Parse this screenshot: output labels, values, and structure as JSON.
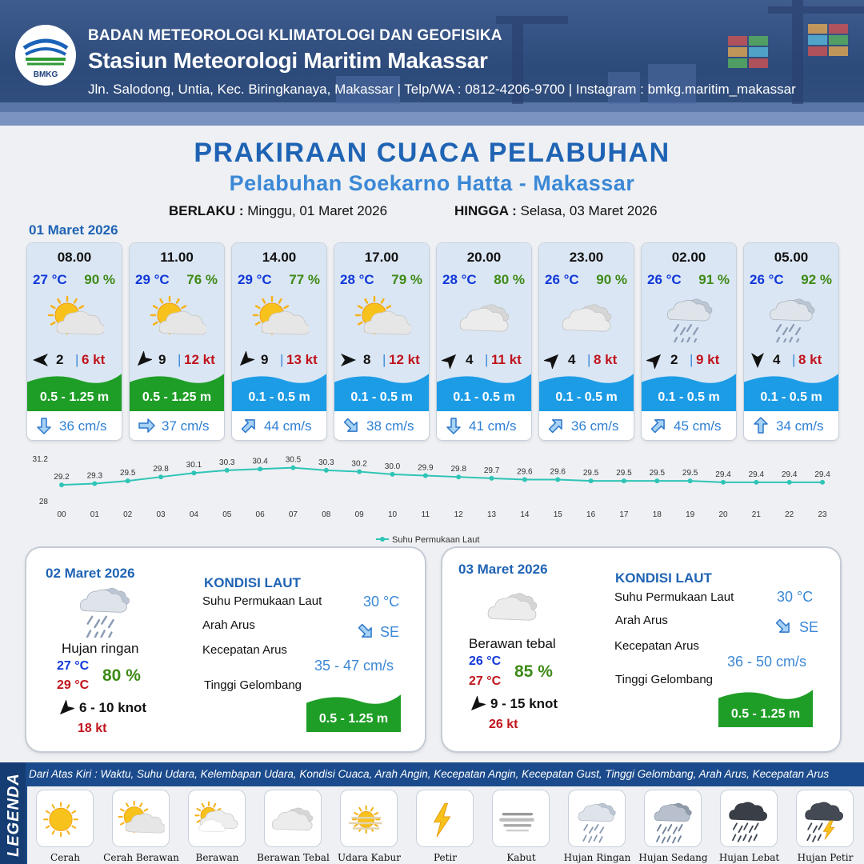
{
  "header": {
    "org": "BADAN METEOROLOGI KLIMATOLOGI DAN GEOFISIKA",
    "station": "Stasiun Meteorologi Maritim Makassar",
    "address": "Jln. Salodong, Untia, Kec. Biringkanaya, Makassar | Telp/WA : 0812-4206-9700 | Instagram : bmkg.maritim_makassar",
    "logo_text": "BMKG"
  },
  "title": "PRAKIRAAN CUACA PELABUHAN",
  "subtitle": "Pelabuhan Soekarno Hatta - Makassar",
  "validity": {
    "from_label": "BERLAKU :",
    "from_value": "Minggu, 01 Maret 2026",
    "to_label": "HINGGA :",
    "to_value": "Selasa, 03 Maret 2026"
  },
  "day1": {
    "date": "01 Maret 2026",
    "hours": [
      {
        "time": "08.00",
        "temp": "27 °C",
        "hum": "90 %",
        "icon": "cerah-berawan-icon",
        "wind_dir": "E",
        "wind": "2",
        "gust": "6 kt",
        "wave": "0.5 - 1.25 m",
        "wave_color": "#1f9e27",
        "cur_dir": "S",
        "current": "36 cm/s"
      },
      {
        "time": "11.00",
        "temp": "29 °C",
        "hum": "76 %",
        "icon": "cerah-berawan-icon",
        "wind_dir": "NE",
        "wind": "9",
        "gust": "12 kt",
        "wave": "0.5 - 1.25 m",
        "wave_color": "#1f9e27",
        "cur_dir": "E",
        "current": "37 cm/s"
      },
      {
        "time": "14.00",
        "temp": "29 °C",
        "hum": "77 %",
        "icon": "cerah-berawan-icon",
        "wind_dir": "NE",
        "wind": "9",
        "gust": "13 kt",
        "wave": "0.1 - 0.5 m",
        "wave_color": "#1d9ce6",
        "cur_dir": "NE",
        "current": "44 cm/s"
      },
      {
        "time": "17.00",
        "temp": "28 °C",
        "hum": "79 %",
        "icon": "cerah-berawan-icon",
        "wind_dir": "W",
        "wind": "8",
        "gust": "12 kt",
        "wave": "0.1 - 0.5 m",
        "wave_color": "#1d9ce6",
        "cur_dir": "SE",
        "current": "38 cm/s"
      },
      {
        "time": "20.00",
        "temp": "28 °C",
        "hum": "80 %",
        "icon": "berawan-tebal-icon",
        "wind_dir": "SW",
        "wind": "4",
        "gust": "11 kt",
        "wave": "0.1 - 0.5 m",
        "wave_color": "#1d9ce6",
        "cur_dir": "S",
        "current": "41 cm/s"
      },
      {
        "time": "23.00",
        "temp": "26 °C",
        "hum": "90 %",
        "icon": "berawan-tebal-icon",
        "wind_dir": "SW",
        "wind": "4",
        "gust": "8 kt",
        "wave": "0.1 - 0.5 m",
        "wave_color": "#1d9ce6",
        "cur_dir": "NE",
        "current": "36 cm/s"
      },
      {
        "time": "02.00",
        "temp": "26 °C",
        "hum": "91 %",
        "icon": "hujan-ringan-icon",
        "wind_dir": "SW",
        "wind": "2",
        "gust": "9 kt",
        "wave": "0.1 - 0.5 m",
        "wave_color": "#1d9ce6",
        "cur_dir": "NE",
        "current": "45 cm/s"
      },
      {
        "time": "05.00",
        "temp": "26 °C",
        "hum": "92 %",
        "icon": "hujan-ringan-icon",
        "wind_dir": "N",
        "wind": "4",
        "gust": "8 kt",
        "wave": "0.1 - 0.5 m",
        "wave_color": "#1d9ce6",
        "cur_dir": "N",
        "current": "34 cm/s"
      }
    ]
  },
  "chart_data": {
    "type": "line",
    "x": [
      "00",
      "01",
      "02",
      "03",
      "04",
      "05",
      "06",
      "07",
      "08",
      "09",
      "10",
      "11",
      "12",
      "13",
      "14",
      "15",
      "16",
      "17",
      "18",
      "19",
      "20",
      "21",
      "22",
      "23"
    ],
    "series": [
      {
        "name": "Suhu Permukaan Laut",
        "values": [
          29.2,
          29.3,
          29.5,
          29.8,
          30.1,
          30.3,
          30.4,
          30.5,
          30.3,
          30.2,
          30.0,
          29.9,
          29.8,
          29.7,
          29.6,
          29.6,
          29.5,
          29.5,
          29.5,
          29.5,
          29.4,
          29.4,
          29.4,
          29.4
        ],
        "color": "#2ec4b6"
      }
    ],
    "y_ticks": [
      "31.2",
      "28"
    ],
    "ylim": [
      28,
      31.2
    ],
    "legend_position": "bottom-center",
    "grid": false
  },
  "day2": {
    "date": "02 Maret 2026",
    "icon": "hujan-ringan-icon",
    "cond": "Hujan ringan",
    "tmin": "27 °C",
    "tmax": "29 °C",
    "hum": "80 %",
    "wind_dir": "NE",
    "wind": "6  - 10 knot",
    "gust": "18 kt",
    "kondisi_title": "KONDISI LAUT",
    "sst_label": "Suhu Permukaan Laut",
    "sst": "30 °C",
    "arah_label": "Arah Arus",
    "arah": "SE",
    "kec_label": "Kecepatan Arus",
    "kec": "35 - 47 cm/s",
    "tinggi_label": "Tinggi Gelombang",
    "wave": "0.5 - 1.25 m",
    "wave_color": "#1f9e27"
  },
  "day3": {
    "date": "03 Maret 2026",
    "icon": "berawan-tebal-icon",
    "cond": "Berawan tebal",
    "tmin": "26 °C",
    "tmax": "27 °C",
    "hum": "85 %",
    "wind_dir": "NE",
    "wind": "9  - 15 knot",
    "gust": "26 kt",
    "kondisi_title": "KONDISI LAUT",
    "sst_label": "Suhu Permukaan Laut",
    "sst": "30 °C",
    "arah_label": "Arah Arus",
    "arah": "SE",
    "kec_label": "Kecepatan Arus",
    "kec": "36 - 50 cm/s",
    "tinggi_label": "Tinggi Gelombang",
    "wave": "0.5 - 1.25 m",
    "wave_color": "#1f9e27"
  },
  "legend": {
    "side_title": "LEGENDA",
    "description": "Dari Atas Kiri : Waktu, Suhu Udara, Kelembapan Udara, Kondisi Cuaca, Arah Angin, Kecepatan Angin, Kecepatan Gust, Tinggi Gelombang, Arah Arus, Kecepatan Arus",
    "items": [
      {
        "label": "Cerah",
        "icon": "cerah-icon"
      },
      {
        "label": "Cerah Berawan",
        "icon": "cerah-berawan-icon"
      },
      {
        "label": "Berawan",
        "icon": "berawan-icon"
      },
      {
        "label": "Berawan Tebal",
        "icon": "berawan-tebal-icon"
      },
      {
        "label": "Udara Kabur",
        "icon": "udara-kabur-icon"
      },
      {
        "label": "Petir",
        "icon": "petir-icon"
      },
      {
        "label": "Kabut",
        "icon": "kabut-icon"
      },
      {
        "label": "Hujan Ringan",
        "icon": "hujan-ringan-icon"
      },
      {
        "label": "Hujan Sedang",
        "icon": "hujan-sedang-icon"
      },
      {
        "label": "Hujan Lebat",
        "icon": "hujan-lebat-icon"
      },
      {
        "label": "Hujan Petir",
        "icon": "hujan-petir-icon"
      }
    ]
  }
}
